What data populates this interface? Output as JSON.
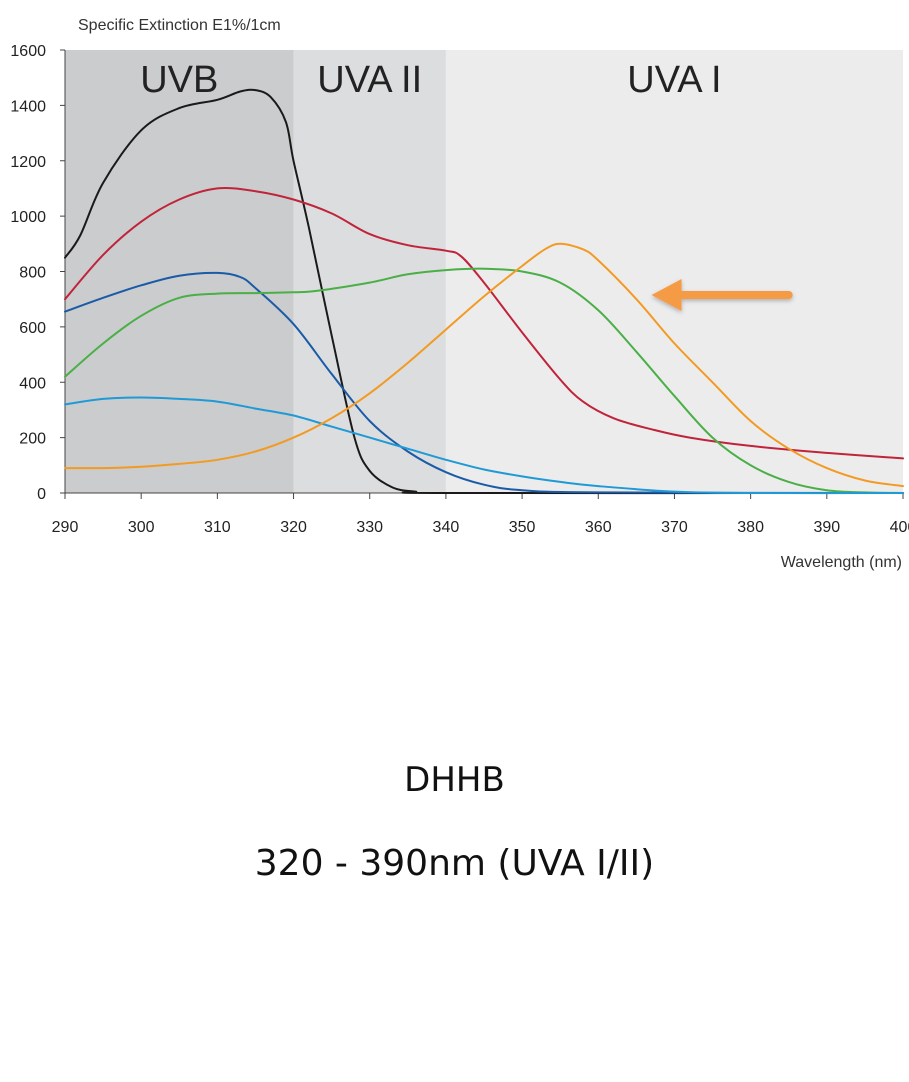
{
  "chart_data": {
    "type": "line",
    "title": "",
    "ylabel": "Specific Extinction E1%/1cm",
    "xlabel": "Wavelength (nm)",
    "xlim": [
      290,
      400
    ],
    "ylim": [
      0,
      1600
    ],
    "x_ticks": [
      290,
      300,
      310,
      320,
      330,
      340,
      350,
      360,
      370,
      380,
      390,
      400
    ],
    "y_ticks": [
      0,
      200,
      400,
      600,
      800,
      1000,
      1200,
      1400,
      1600
    ],
    "bands": [
      {
        "label": "UVB",
        "from": 290,
        "to": 320,
        "color": "#cbcccd"
      },
      {
        "label": "UVA II",
        "from": 320,
        "to": 340,
        "color": "#dcddde"
      },
      {
        "label": "UVA I",
        "from": 340,
        "to": 400,
        "color": "#ececed"
      }
    ],
    "series": [
      {
        "name": "black",
        "color": "#1a1a1a",
        "x": [
          290,
          292,
          295,
          300,
          305,
          310,
          313,
          315,
          317,
          319,
          320,
          322,
          325,
          328,
          330,
          333,
          336,
          340,
          400
        ],
        "y": [
          850,
          930,
          1120,
          1310,
          1390,
          1420,
          1450,
          1455,
          1430,
          1340,
          1200,
          960,
          570,
          200,
          80,
          20,
          5,
          0,
          0
        ]
      },
      {
        "name": "red",
        "color": "#c0233a",
        "x": [
          290,
          295,
          300,
          305,
          310,
          315,
          320,
          325,
          330,
          335,
          340,
          342,
          345,
          350,
          355,
          358,
          362,
          367,
          372,
          380,
          390,
          400
        ],
        "y": [
          700,
          860,
          980,
          1060,
          1100,
          1090,
          1060,
          1010,
          935,
          895,
          875,
          855,
          760,
          580,
          410,
          330,
          270,
          230,
          200,
          170,
          145,
          125
        ]
      },
      {
        "name": "dark-blue",
        "color": "#1a5ba8",
        "x": [
          290,
          295,
          300,
          305,
          310,
          313,
          315,
          320,
          325,
          330,
          335,
          340,
          345,
          350,
          360,
          400
        ],
        "y": [
          655,
          705,
          750,
          785,
          795,
          780,
          740,
          610,
          430,
          260,
          150,
          75,
          30,
          10,
          2,
          0
        ]
      },
      {
        "name": "green",
        "color": "#4aaf46",
        "x": [
          290,
          295,
          300,
          305,
          310,
          315,
          320,
          323,
          330,
          335,
          340,
          345,
          350,
          355,
          360,
          365,
          370,
          375,
          380,
          385,
          390,
          395,
          400
        ],
        "y": [
          420,
          540,
          640,
          705,
          720,
          722,
          725,
          730,
          760,
          790,
          805,
          810,
          800,
          760,
          660,
          510,
          350,
          200,
          100,
          40,
          10,
          2,
          0
        ]
      },
      {
        "name": "light-blue",
        "color": "#1f9ad6",
        "x": [
          290,
          295,
          300,
          305,
          310,
          315,
          320,
          325,
          330,
          335,
          340,
          345,
          350,
          355,
          360,
          370,
          380,
          400
        ],
        "y": [
          320,
          340,
          345,
          340,
          330,
          305,
          280,
          240,
          200,
          160,
          120,
          85,
          60,
          40,
          25,
          5,
          0,
          0
        ]
      },
      {
        "name": "orange",
        "color": "#f39a22",
        "x": [
          290,
          295,
          300,
          305,
          310,
          315,
          320,
          325,
          330,
          335,
          340,
          345,
          350,
          353,
          355,
          358,
          360,
          365,
          370,
          375,
          380,
          385,
          390,
          395,
          400
        ],
        "y": [
          90,
          90,
          95,
          105,
          120,
          150,
          200,
          270,
          360,
          470,
          590,
          710,
          820,
          880,
          900,
          880,
          840,
          700,
          540,
          400,
          260,
          160,
          90,
          45,
          25
        ]
      }
    ],
    "annotations": [
      {
        "type": "arrow",
        "color": "#f59a45",
        "points_to_series": "orange",
        "from": [
          385,
          715
        ],
        "to": [
          367,
          715
        ]
      }
    ]
  },
  "captions": {
    "compound": "DHHB",
    "range": "320 - 390nm (UVA I/II)"
  }
}
